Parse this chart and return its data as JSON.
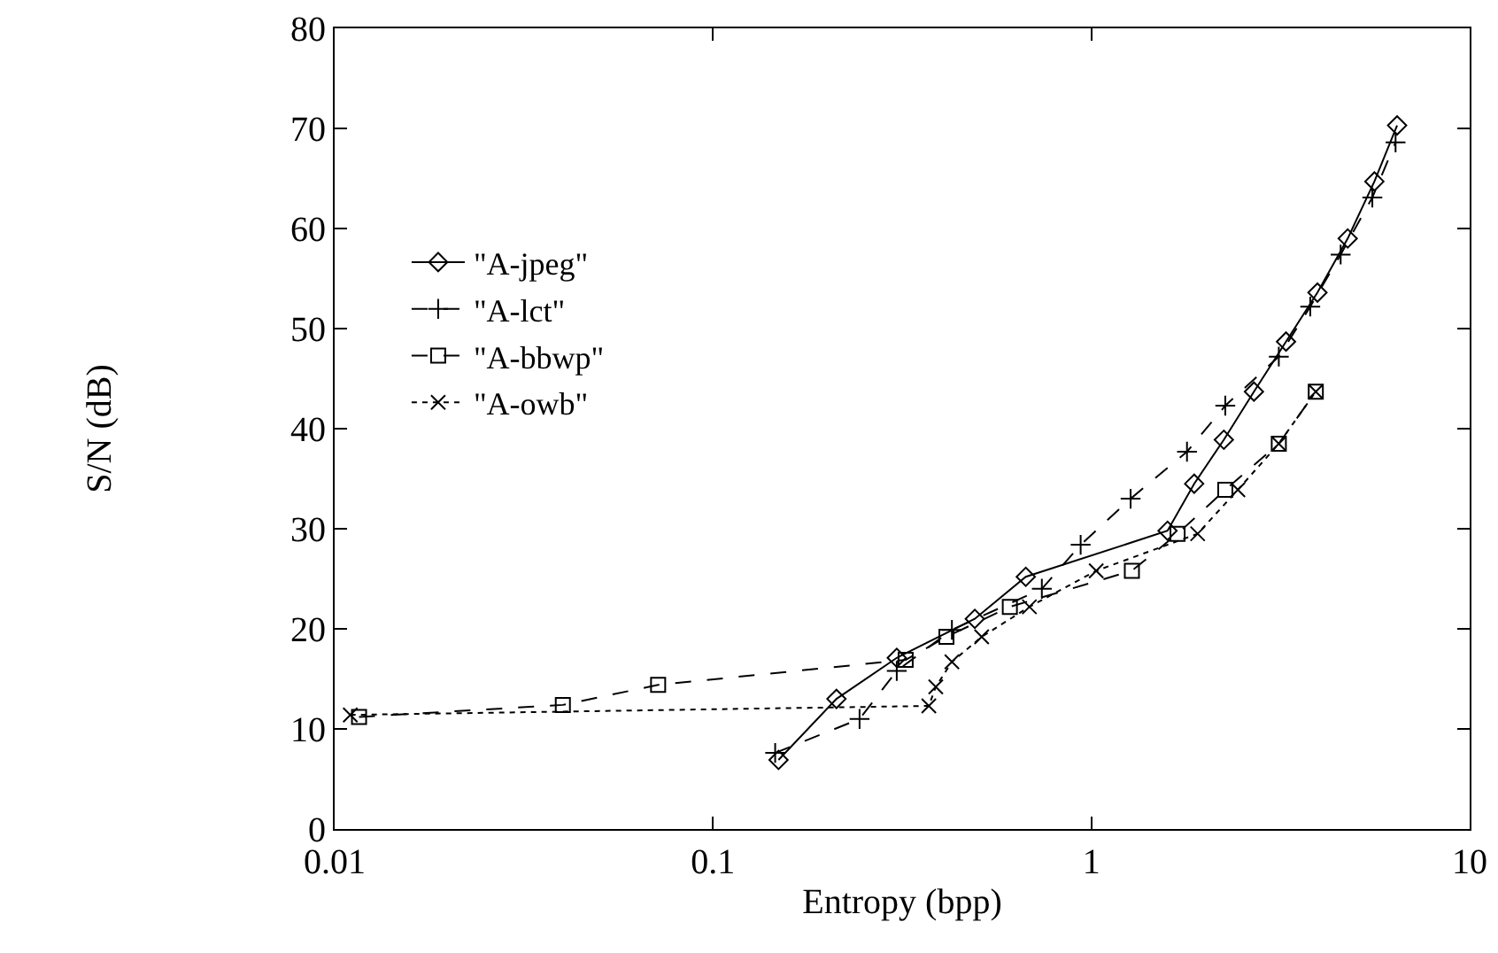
{
  "chart_data": {
    "type": "line",
    "xlabel": "Entropy (bpp)",
    "ylabel": "S/N (dB)",
    "log": "x",
    "xlim": [
      0.01,
      10
    ],
    "xticks": [
      0.01,
      0.1,
      1,
      10
    ],
    "ylim": [
      0,
      80
    ],
    "yticks": [
      0,
      10,
      20,
      30,
      40,
      50,
      60,
      70,
      80
    ],
    "grid": false,
    "legend": "left",
    "series": [
      {
        "name": "\"A-jpeg\"",
        "color": "#000000",
        "marker": "diamond",
        "line_style": "solid",
        "x": [
          0.149,
          0.212,
          0.306,
          0.492,
          0.671,
          1.59,
          1.87,
          2.24,
          2.69,
          3.27,
          3.96,
          4.76,
          5.6,
          6.43
        ],
        "values": [
          6.9,
          13.0,
          17.1,
          21.0,
          25.2,
          29.8,
          34.5,
          38.9,
          43.7,
          48.7,
          53.6,
          59.0,
          64.7,
          70.3
        ]
      },
      {
        "name": "\"A-lct\"",
        "color": "#000000",
        "marker": "plus",
        "line_style": "dashed",
        "x": [
          0.146,
          0.244,
          0.306,
          0.428,
          0.74,
          0.937,
          1.27,
          1.79,
          2.26,
          3.13,
          3.79,
          4.56,
          5.53,
          6.37
        ],
        "values": [
          7.6,
          11.0,
          15.8,
          19.9,
          24.0,
          28.4,
          33.0,
          37.7,
          42.3,
          47.2,
          52.2,
          57.4,
          63.1,
          68.6
        ]
      },
      {
        "name": "\"A-bbwp\"",
        "color": "#000000",
        "marker": "square",
        "line_style": "dashed",
        "x": [
          0.0116,
          0.0401,
          0.0716,
          0.323,
          0.414,
          0.609,
          1.28,
          1.69,
          2.26,
          3.13,
          3.92
        ],
        "values": [
          11.2,
          12.4,
          14.4,
          16.9,
          19.2,
          22.2,
          25.8,
          29.5,
          33.9,
          38.5,
          43.7
        ]
      },
      {
        "name": "\"A-owb\"",
        "color": "#000000",
        "marker": "cross",
        "line_style": "dotted",
        "x": [
          0.011,
          0.372,
          0.388,
          0.428,
          0.513,
          0.686,
          1.03,
          1.91,
          2.44,
          3.13,
          3.92
        ],
        "values": [
          11.4,
          12.3,
          14.2,
          16.7,
          19.2,
          22.2,
          25.8,
          29.5,
          33.9,
          38.5,
          43.7
        ]
      }
    ]
  }
}
